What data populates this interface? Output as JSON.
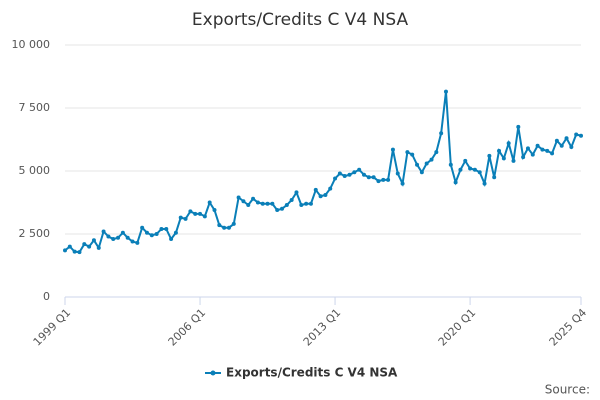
{
  "chart_data": {
    "type": "line",
    "title": "Exports/Credits C V4 NSA",
    "source": "Source:",
    "categories": [
      "1999 Q1",
      null,
      null,
      null,
      null,
      null,
      null,
      null,
      null,
      null,
      null,
      null,
      null,
      null,
      null,
      null,
      null,
      null,
      null,
      null,
      null,
      null,
      null,
      null,
      null,
      null,
      null,
      null,
      "2006 Q1",
      null,
      null,
      null,
      null,
      null,
      null,
      null,
      null,
      null,
      null,
      null,
      null,
      null,
      null,
      null,
      null,
      null,
      null,
      null,
      null,
      null,
      null,
      null,
      null,
      null,
      null,
      null,
      "2013 Q1",
      null,
      null,
      null,
      null,
      null,
      null,
      null,
      null,
      null,
      null,
      null,
      null,
      null,
      null,
      null,
      null,
      null,
      null,
      null,
      null,
      null,
      null,
      null,
      null,
      null,
      null,
      null,
      "2020 Q1",
      null,
      null,
      null,
      null,
      null,
      null,
      null,
      null,
      null,
      null,
      null,
      null,
      null,
      null,
      null,
      null,
      null,
      null,
      null,
      null,
      null,
      null,
      "2025 Q4"
    ],
    "series": [
      {
        "name": "Exports/Credits C V4 NSA",
        "color": "#0a7fb8",
        "values": [
          1850,
          2000,
          1800,
          1780,
          2100,
          2000,
          2250,
          1950,
          2600,
          2400,
          2300,
          2350,
          2550,
          2350,
          2200,
          2150,
          2750,
          2550,
          2450,
          2500,
          2700,
          2700,
          2300,
          2550,
          3150,
          3100,
          3400,
          3300,
          3300,
          3200,
          3750,
          3450,
          2850,
          2750,
          2750,
          2900,
          3950,
          3800,
          3650,
          3900,
          3750,
          3700,
          3700,
          3700,
          3450,
          3500,
          3650,
          3850,
          4150,
          3650,
          3700,
          3700,
          4250,
          4000,
          4050,
          4300,
          4700,
          4900,
          4800,
          4850,
          4950,
          5050,
          4850,
          4750,
          4750,
          4600,
          4650,
          4650,
          5850,
          4900,
          4500,
          5750,
          5650,
          5250,
          4950,
          5300,
          5450,
          5750,
          6500,
          8150,
          5250,
          4550,
          5050,
          5400,
          5100,
          5050,
          4950,
          4500,
          5600,
          4750,
          5800,
          5500,
          6100,
          5400,
          6750,
          5550,
          5900,
          5650,
          6000,
          5850,
          5800,
          5700,
          6200,
          6000,
          6300,
          5950,
          6450,
          6400
        ]
      }
    ],
    "ylim": [
      0,
      10000
    ],
    "yticks": [
      0,
      {
        "value": 2500,
        "label": "2 500"
      },
      {
        "value": 5000,
        "label": "5 000"
      },
      {
        "value": 7500,
        "label": "7 500"
      },
      {
        "value": 10000,
        "label": "10 000"
      }
    ],
    "grid": true
  }
}
